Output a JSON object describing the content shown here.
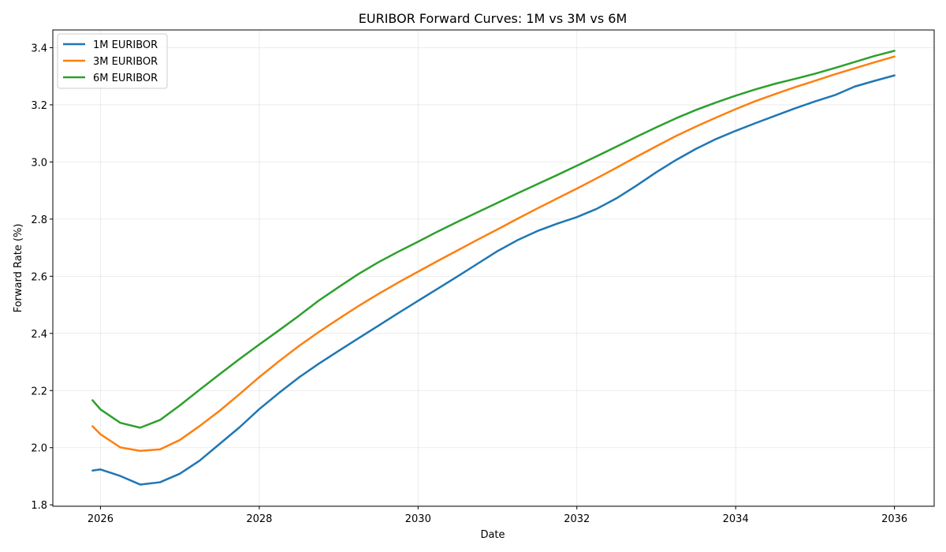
{
  "chart_data": {
    "type": "line",
    "title": "EURIBOR Forward Curves: 1M vs 3M vs 6M",
    "xlabel": "Date",
    "ylabel": "Forward Rate (%)",
    "xlim": [
      2025.4,
      2036.5
    ],
    "ylim": [
      1.795,
      3.462
    ],
    "x_ticks": [
      2026,
      2028,
      2030,
      2032,
      2034,
      2036
    ],
    "x_tick_labels": [
      "2026",
      "2028",
      "2030",
      "2032",
      "2034",
      "2036"
    ],
    "y_ticks": [
      1.8,
      2.0,
      2.2,
      2.4,
      2.6,
      2.8,
      3.0,
      3.2,
      3.4
    ],
    "y_tick_labels": [
      "1.8",
      "2.0",
      "2.2",
      "2.4",
      "2.6",
      "2.8",
      "3.0",
      "3.2",
      "3.4"
    ],
    "grid": true,
    "legend_position": "upper-left",
    "x": [
      2025.9,
      2026.0,
      2026.25,
      2026.5,
      2026.75,
      2027.0,
      2027.25,
      2027.5,
      2027.75,
      2028.0,
      2028.25,
      2028.5,
      2028.75,
      2029.0,
      2029.25,
      2029.5,
      2029.75,
      2030.0,
      2030.25,
      2030.5,
      2030.75,
      2031.0,
      2031.25,
      2031.5,
      2031.75,
      2032.0,
      2032.25,
      2032.5,
      2032.75,
      2033.0,
      2033.25,
      2033.5,
      2033.75,
      2034.0,
      2034.25,
      2034.5,
      2034.75,
      2035.0,
      2035.25,
      2035.5,
      2035.75,
      2036.0
    ],
    "series": [
      {
        "name": "1M EURIBOR",
        "color": "#1f77b4",
        "values": [
          1.92,
          1.924,
          1.901,
          1.871,
          1.879,
          1.909,
          1.955,
          2.013,
          2.071,
          2.135,
          2.192,
          2.246,
          2.294,
          2.339,
          2.383,
          2.427,
          2.471,
          2.514,
          2.557,
          2.6,
          2.644,
          2.688,
          2.726,
          2.758,
          2.784,
          2.807,
          2.836,
          2.873,
          2.917,
          2.964,
          3.007,
          3.046,
          3.08,
          3.109,
          3.136,
          3.162,
          3.188,
          3.212,
          3.234,
          3.264,
          3.284,
          3.303
        ]
      },
      {
        "name": "3M EURIBOR",
        "color": "#ff7f0e",
        "values": [
          2.075,
          2.047,
          2.001,
          1.989,
          1.994,
          2.027,
          2.076,
          2.129,
          2.187,
          2.247,
          2.303,
          2.356,
          2.405,
          2.451,
          2.496,
          2.538,
          2.578,
          2.616,
          2.654,
          2.691,
          2.728,
          2.764,
          2.801,
          2.837,
          2.872,
          2.907,
          2.943,
          2.98,
          3.018,
          3.055,
          3.091,
          3.124,
          3.155,
          3.185,
          3.213,
          3.238,
          3.262,
          3.284,
          3.307,
          3.328,
          3.349,
          3.369
        ]
      },
      {
        "name": "6M EURIBOR",
        "color": "#2ca02c",
        "values": [
          2.166,
          2.134,
          2.087,
          2.07,
          2.097,
          2.148,
          2.203,
          2.257,
          2.31,
          2.361,
          2.411,
          2.462,
          2.515,
          2.562,
          2.608,
          2.649,
          2.686,
          2.721,
          2.757,
          2.791,
          2.824,
          2.857,
          2.89,
          2.922,
          2.954,
          2.987,
          3.02,
          3.054,
          3.088,
          3.121,
          3.153,
          3.182,
          3.208,
          3.232,
          3.254,
          3.274,
          3.291,
          3.309,
          3.329,
          3.35,
          3.371,
          3.389
        ]
      }
    ]
  }
}
